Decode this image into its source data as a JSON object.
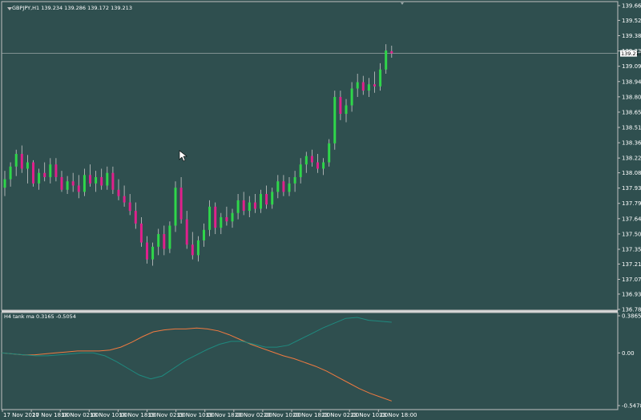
{
  "colors": {
    "background": "#2f4f4f",
    "bull": "#2fd64a",
    "bear": "#e0208c",
    "wick": "#c8c8c8",
    "frame": "#c0c0c0",
    "text": "#ffffff",
    "price_line": "#9aa7a7",
    "price_tag_bg": "#ffffff",
    "price_tag_text": "#000000",
    "line_fast": "#f07a40",
    "line_slow": "#1f8a7f"
  },
  "main": {
    "header": "GBPJPY,H1  139.234 139.286 139.172 139.213",
    "current_price": "139.213",
    "ylim": [
      136.786,
      139.666
    ],
    "y_ticks": [
      "139.666",
      "139.526",
      "139.381",
      "139.236",
      "139.091",
      "138.946",
      "138.801",
      "138.656",
      "138.511",
      "138.366",
      "138.221",
      "138.081",
      "137.936",
      "137.791",
      "137.646",
      "137.501",
      "137.356",
      "137.216",
      "137.071",
      "136.931",
      "136.786"
    ]
  },
  "indicator": {
    "header": "H4 tank ma 0.3165 -0.5054",
    "y_ticks": [
      "0.3865",
      "0.00",
      "-0.5478"
    ]
  },
  "x_ticks": [
    "17 Nov 2020",
    "17 Nov 18:00",
    "18 Nov 02:00",
    "18 Nov 10:00",
    "18 Nov 18:00",
    "19 Nov 02:00",
    "19 Nov 10:00",
    "19 Nov 18:00",
    "20 Nov 02:00",
    "20 Nov 10:00",
    "20 Nov 18:00",
    "23 Nov 02:00",
    "23 Nov 10:00",
    "23 Nov 18:00"
  ],
  "chart_data": [
    {
      "type": "candlestick",
      "title": "GBPJPY,H1",
      "ylim": [
        136.786,
        139.666
      ],
      "candles": [
        {
          "o": 137.94,
          "h": 138.1,
          "l": 137.86,
          "c": 138.02
        },
        {
          "o": 138.02,
          "h": 138.18,
          "l": 137.95,
          "c": 138.14
        },
        {
          "o": 138.14,
          "h": 138.3,
          "l": 138.05,
          "c": 138.26
        },
        {
          "o": 138.26,
          "h": 138.34,
          "l": 138.08,
          "c": 138.12
        },
        {
          "o": 138.12,
          "h": 138.25,
          "l": 137.98,
          "c": 138.18
        },
        {
          "o": 138.18,
          "h": 138.2,
          "l": 137.95,
          "c": 137.98
        },
        {
          "o": 137.98,
          "h": 138.12,
          "l": 137.92,
          "c": 138.08
        },
        {
          "o": 138.08,
          "h": 138.18,
          "l": 138.0,
          "c": 138.04
        },
        {
          "o": 138.04,
          "h": 138.22,
          "l": 137.98,
          "c": 138.16
        },
        {
          "o": 138.16,
          "h": 138.22,
          "l": 138.0,
          "c": 138.04
        },
        {
          "o": 138.04,
          "h": 138.1,
          "l": 137.9,
          "c": 137.92
        },
        {
          "o": 137.92,
          "h": 138.05,
          "l": 137.88,
          "c": 138.0
        },
        {
          "o": 138.0,
          "h": 138.08,
          "l": 137.9,
          "c": 137.96
        },
        {
          "o": 137.96,
          "h": 138.06,
          "l": 137.84,
          "c": 137.9
        },
        {
          "o": 137.9,
          "h": 138.12,
          "l": 137.86,
          "c": 138.06
        },
        {
          "o": 138.06,
          "h": 138.16,
          "l": 137.95,
          "c": 137.98
        },
        {
          "o": 137.98,
          "h": 138.1,
          "l": 137.9,
          "c": 138.04
        },
        {
          "o": 138.04,
          "h": 138.12,
          "l": 137.92,
          "c": 137.96
        },
        {
          "o": 137.96,
          "h": 138.14,
          "l": 137.92,
          "c": 138.08
        },
        {
          "o": 138.08,
          "h": 138.14,
          "l": 137.88,
          "c": 137.92
        },
        {
          "o": 137.92,
          "h": 138.02,
          "l": 137.82,
          "c": 137.86
        },
        {
          "o": 137.86,
          "h": 137.96,
          "l": 137.76,
          "c": 137.8
        },
        {
          "o": 137.8,
          "h": 137.88,
          "l": 137.68,
          "c": 137.72
        },
        {
          "o": 137.72,
          "h": 137.8,
          "l": 137.55,
          "c": 137.6
        },
        {
          "o": 137.6,
          "h": 137.66,
          "l": 137.38,
          "c": 137.42
        },
        {
          "o": 137.42,
          "h": 137.48,
          "l": 137.22,
          "c": 137.26
        },
        {
          "o": 137.26,
          "h": 137.42,
          "l": 137.2,
          "c": 137.38
        },
        {
          "o": 137.38,
          "h": 137.55,
          "l": 137.3,
          "c": 137.5
        },
        {
          "o": 137.5,
          "h": 137.58,
          "l": 137.3,
          "c": 137.36
        },
        {
          "o": 137.36,
          "h": 137.62,
          "l": 137.32,
          "c": 137.58
        },
        {
          "o": 137.58,
          "h": 138.0,
          "l": 137.52,
          "c": 137.94
        },
        {
          "o": 137.94,
          "h": 138.04,
          "l": 137.6,
          "c": 137.64
        },
        {
          "o": 137.64,
          "h": 137.72,
          "l": 137.36,
          "c": 137.4
        },
        {
          "o": 137.4,
          "h": 137.52,
          "l": 137.26,
          "c": 137.3
        },
        {
          "o": 137.3,
          "h": 137.48,
          "l": 137.24,
          "c": 137.44
        },
        {
          "o": 137.44,
          "h": 137.6,
          "l": 137.38,
          "c": 137.54
        },
        {
          "o": 137.54,
          "h": 137.82,
          "l": 137.48,
          "c": 137.76
        },
        {
          "o": 137.76,
          "h": 137.8,
          "l": 137.5,
          "c": 137.56
        },
        {
          "o": 137.56,
          "h": 137.7,
          "l": 137.5,
          "c": 137.66
        },
        {
          "o": 137.66,
          "h": 137.76,
          "l": 137.58,
          "c": 137.62
        },
        {
          "o": 137.62,
          "h": 137.74,
          "l": 137.56,
          "c": 137.7
        },
        {
          "o": 137.7,
          "h": 137.88,
          "l": 137.64,
          "c": 137.82
        },
        {
          "o": 137.82,
          "h": 137.9,
          "l": 137.68,
          "c": 137.72
        },
        {
          "o": 137.72,
          "h": 137.86,
          "l": 137.66,
          "c": 137.8
        },
        {
          "o": 137.8,
          "h": 137.88,
          "l": 137.7,
          "c": 137.74
        },
        {
          "o": 137.74,
          "h": 137.92,
          "l": 137.7,
          "c": 137.88
        },
        {
          "o": 137.88,
          "h": 137.96,
          "l": 137.74,
          "c": 137.78
        },
        {
          "o": 137.78,
          "h": 137.94,
          "l": 137.74,
          "c": 137.9
        },
        {
          "o": 137.9,
          "h": 138.06,
          "l": 137.84,
          "c": 138.0
        },
        {
          "o": 138.0,
          "h": 138.06,
          "l": 137.86,
          "c": 137.9
        },
        {
          "o": 137.9,
          "h": 138.04,
          "l": 137.86,
          "c": 137.98
        },
        {
          "o": 137.98,
          "h": 138.1,
          "l": 137.9,
          "c": 138.04
        },
        {
          "o": 138.04,
          "h": 138.22,
          "l": 137.98,
          "c": 138.16
        },
        {
          "o": 138.16,
          "h": 138.28,
          "l": 138.08,
          "c": 138.24
        },
        {
          "o": 138.24,
          "h": 138.3,
          "l": 138.14,
          "c": 138.18
        },
        {
          "o": 138.18,
          "h": 138.26,
          "l": 138.08,
          "c": 138.12
        },
        {
          "o": 138.12,
          "h": 138.22,
          "l": 138.06,
          "c": 138.18
        },
        {
          "o": 138.18,
          "h": 138.4,
          "l": 138.14,
          "c": 138.36
        },
        {
          "o": 138.36,
          "h": 138.86,
          "l": 138.3,
          "c": 138.8
        },
        {
          "o": 138.8,
          "h": 138.86,
          "l": 138.58,
          "c": 138.64
        },
        {
          "o": 138.64,
          "h": 138.78,
          "l": 138.56,
          "c": 138.72
        },
        {
          "o": 138.72,
          "h": 138.94,
          "l": 138.66,
          "c": 138.88
        },
        {
          "o": 138.88,
          "h": 139.02,
          "l": 138.8,
          "c": 138.94
        },
        {
          "o": 138.94,
          "h": 139.0,
          "l": 138.82,
          "c": 138.86
        },
        {
          "o": 138.86,
          "h": 138.98,
          "l": 138.8,
          "c": 138.92
        },
        {
          "o": 138.92,
          "h": 139.04,
          "l": 138.84,
          "c": 138.9
        },
        {
          "o": 138.9,
          "h": 139.12,
          "l": 138.86,
          "c": 139.06
        },
        {
          "o": 139.06,
          "h": 139.3,
          "l": 139.02,
          "c": 139.24
        },
        {
          "o": 139.234,
          "h": 139.286,
          "l": 139.172,
          "c": 139.213
        }
      ]
    },
    {
      "type": "line",
      "title": "H4 tank ma",
      "ylim": [
        -0.5478,
        0.3865
      ],
      "series": [
        {
          "values": [
            0.0,
            -0.01,
            -0.02,
            -0.02,
            -0.01,
            0.0,
            0.01,
            0.02,
            0.02,
            0.02,
            0.03,
            0.06,
            0.11,
            0.17,
            0.22,
            0.24,
            0.25,
            0.25,
            0.26,
            0.25,
            0.23,
            0.19,
            0.14,
            0.09,
            0.05,
            0.01,
            -0.03,
            -0.06,
            -0.1,
            -0.14,
            -0.19,
            -0.25,
            -0.31,
            -0.37,
            -0.42,
            -0.46,
            -0.5
          ]
        },
        {
          "values": [
            0.0,
            -0.01,
            -0.02,
            -0.03,
            -0.03,
            -0.02,
            -0.01,
            0.0,
            0.0,
            -0.03,
            -0.09,
            -0.16,
            -0.23,
            -0.27,
            -0.24,
            -0.16,
            -0.08,
            -0.02,
            0.04,
            0.09,
            0.12,
            0.12,
            0.09,
            0.06,
            0.06,
            0.08,
            0.14,
            0.2,
            0.26,
            0.31,
            0.36,
            0.37,
            0.34,
            0.33,
            0.32
          ]
        }
      ]
    }
  ]
}
